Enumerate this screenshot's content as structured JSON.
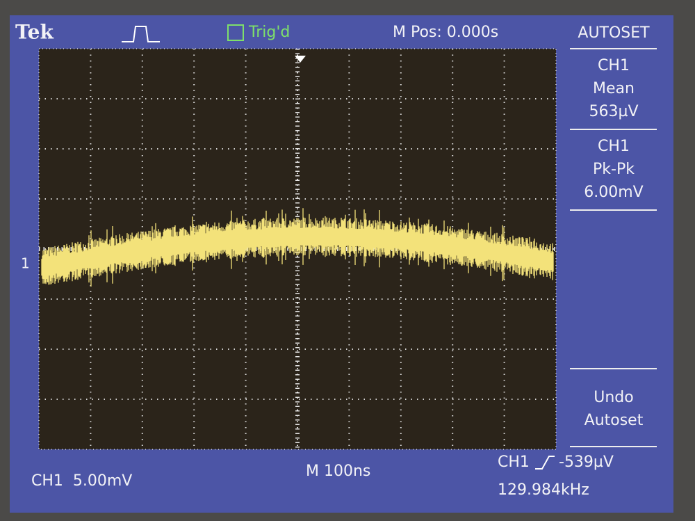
{
  "header": {
    "brand": "Tek",
    "trigger_status": "Trig'd",
    "main_position": "M Pos: 0.000s"
  },
  "menu": {
    "title": "AUTOSET",
    "items": [
      {
        "lines": [
          "CH1",
          "Mean",
          "563µV"
        ]
      },
      {
        "lines": [
          "CH1",
          "Pk-Pk",
          "6.00mV"
        ]
      },
      {
        "lines": [
          "Undo",
          "Autoset"
        ]
      }
    ]
  },
  "footer": {
    "channel_scale": "CH1  5.00mV",
    "timebase": "M 100ns",
    "trigger_source": "CH1",
    "trigger_level": "-539µV",
    "frequency": "129.984kHz"
  },
  "marker": {
    "channel": "1"
  }
}
